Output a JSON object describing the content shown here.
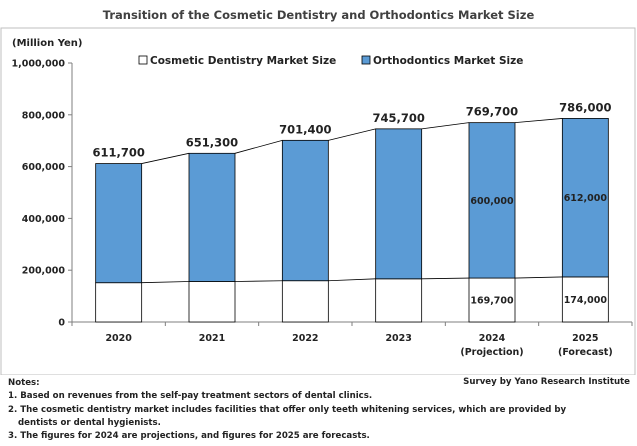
{
  "chart_data": {
    "type": "bar",
    "title": "Transition of the Cosmetic Dentistry and Orthodontics Market Size",
    "ylabel": "(Million Yen)",
    "ylim": [
      0,
      1000000
    ],
    "yticks": [
      0,
      200000,
      400000,
      600000,
      800000,
      1000000
    ],
    "ytick_labels": [
      "0",
      "200,000",
      "400,000",
      "600,000",
      "800,000",
      "1,000,000"
    ],
    "categories": [
      "2020",
      "2021",
      "2022",
      "2023",
      "2024",
      "2025"
    ],
    "category_sublabels": [
      "",
      "",
      "",
      "",
      "(Projection)",
      "(Forecast)"
    ],
    "stacked": true,
    "series": [
      {
        "name": "Cosmetic Dentistry Market Size",
        "color": "#ffffff",
        "values": [
          151700,
          156300,
          159400,
          166700,
          169700,
          174000
        ]
      },
      {
        "name": "Orthodontics Market Size",
        "color": "#5b9bd5",
        "values": [
          460000,
          495000,
          542000,
          579000,
          600000,
          612000
        ]
      }
    ],
    "totals": [
      611700,
      651300,
      701400,
      745700,
      769700,
      786000
    ],
    "total_labels": [
      "611,700",
      "651,300",
      "701,400",
      "745,700",
      "769,700",
      "786,000"
    ],
    "data_labels": [
      {
        "category": "2024",
        "series": "Orthodontics Market Size",
        "text": "600,000"
      },
      {
        "category": "2025",
        "series": "Orthodontics Market Size",
        "text": "612,000"
      },
      {
        "category": "2024",
        "series": "Cosmetic Dentistry Market Size",
        "text": "169,700"
      },
      {
        "category": "2025",
        "series": "Cosmetic Dentistry Market Size",
        "text": "174,000"
      }
    ],
    "legend_position": "top",
    "grid": false
  },
  "notes": {
    "heading": "Notes:",
    "lines": [
      "1. Based on revenues from the self-pay treatment sectors of dental clinics.",
      "2. The cosmetic dentistry market includes facilities that offer only teeth whitening services, which are provided by",
      "dentists or dental hygienists.",
      "3. The figures for 2024 are projections, and figures for 2025 are forecasts."
    ]
  },
  "source": "Survey by Yano Research Institute"
}
